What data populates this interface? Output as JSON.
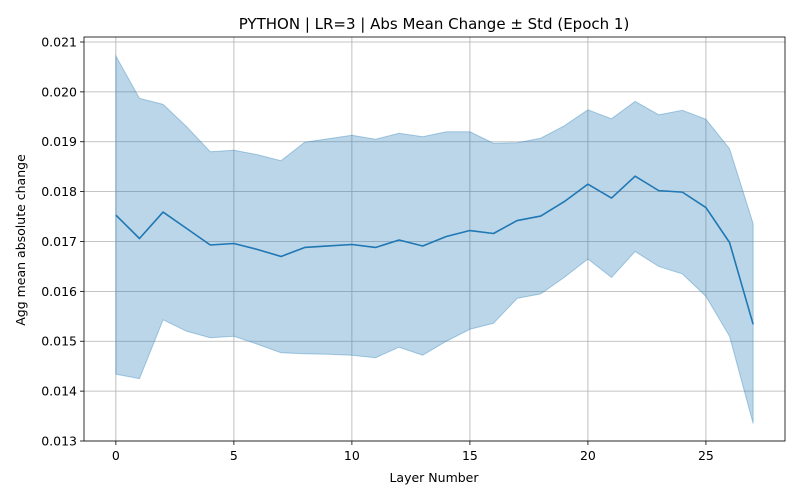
{
  "chart_data": {
    "type": "line",
    "title": "PYTHON | LR=3 | Abs Mean Change ± Std (Epoch 1)",
    "xlabel": "Layer Number",
    "ylabel": "Agg mean absolute change",
    "xlim": [
      -1.35,
      28.35
    ],
    "ylim": [
      0.013,
      0.0211
    ],
    "xticks": [
      0,
      5,
      10,
      15,
      20,
      25
    ],
    "xtick_labels": [
      "0",
      "5",
      "10",
      "15",
      "20",
      "25"
    ],
    "yticks": [
      0.013,
      0.014,
      0.015,
      0.016,
      0.017,
      0.018,
      0.019,
      0.02,
      0.021
    ],
    "ytick_labels": [
      "0.013",
      "0.014",
      "0.015",
      "0.016",
      "0.017",
      "0.018",
      "0.019",
      "0.020",
      "0.021"
    ],
    "grid": true,
    "x": [
      0,
      1,
      2,
      3,
      4,
      5,
      6,
      7,
      8,
      9,
      10,
      11,
      12,
      13,
      14,
      15,
      16,
      17,
      18,
      19,
      20,
      21,
      22,
      23,
      24,
      25,
      26,
      27
    ],
    "series": [
      {
        "values": [
          0.01753,
          0.01706,
          0.01759,
          0.01726,
          0.01693,
          0.01696,
          0.01684,
          0.0167,
          0.01688,
          0.01691,
          0.01694,
          0.01688,
          0.01703,
          0.01691,
          0.0171,
          0.01722,
          0.01716,
          0.01742,
          0.01751,
          0.0178,
          0.01815,
          0.01787,
          0.01831,
          0.01802,
          0.01799,
          0.01768,
          0.01698,
          0.01534
        ],
        "upper": [
          0.02072,
          0.01987,
          0.01975,
          0.0193,
          0.0188,
          0.01883,
          0.01874,
          0.01862,
          0.01899,
          0.01906,
          0.01913,
          0.01905,
          0.01917,
          0.0191,
          0.0192,
          0.0192,
          0.01897,
          0.01898,
          0.01907,
          0.01932,
          0.01964,
          0.01946,
          0.01981,
          0.01954,
          0.01963,
          0.01945,
          0.01886,
          0.01736
        ],
        "lower": [
          0.01434,
          0.01425,
          0.01543,
          0.0152,
          0.01507,
          0.0151,
          0.01494,
          0.01477,
          0.01475,
          0.01474,
          0.01472,
          0.01467,
          0.01488,
          0.01472,
          0.015,
          0.01524,
          0.01536,
          0.01586,
          0.01595,
          0.01628,
          0.01665,
          0.01628,
          0.0168,
          0.0165,
          0.01635,
          0.0159,
          0.0151,
          0.01335
        ],
        "color": "#1f77b4",
        "band_color": "#1f77b4",
        "band_opacity": 0.3
      }
    ]
  }
}
